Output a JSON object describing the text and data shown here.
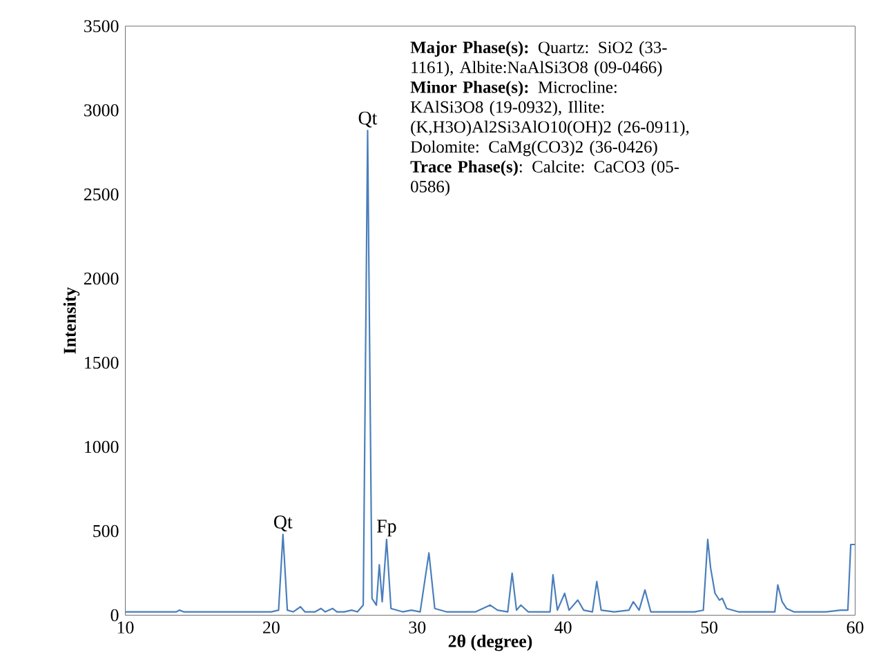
{
  "chart_data": {
    "type": "line",
    "xlabel": "2θ (degree)",
    "ylabel": "Intensity",
    "xlim": [
      10,
      60
    ],
    "xticks": [
      10,
      20,
      30,
      40,
      50,
      60
    ],
    "ylim": [
      0,
      3500
    ],
    "yticks": [
      0,
      500,
      1000,
      1500,
      2000,
      2500,
      3000,
      3500
    ],
    "grid": false,
    "marker": "none",
    "line_style": "solid",
    "series": [
      {
        "color": "#4a7ebb",
        "x": [
          10,
          12,
          13.5,
          13.7,
          14,
          16,
          18,
          19.5,
          20,
          20.5,
          20.8,
          21.1,
          21.5,
          22.0,
          22.3,
          23,
          23.4,
          23.7,
          24.2,
          24.5,
          25.0,
          25.5,
          25.9,
          26.3,
          26.6,
          26.9,
          27.2,
          27.4,
          27.6,
          27.9,
          28.2,
          29,
          29.6,
          30.2,
          30.8,
          31.2,
          32,
          33,
          34,
          35,
          35.5,
          36.2,
          36.5,
          36.8,
          37.1,
          37.6,
          38.5,
          39.1,
          39.3,
          39.6,
          40.1,
          40.4,
          41.0,
          41.4,
          42,
          42.3,
          42.6,
          43.5,
          44.5,
          44.8,
          45.2,
          45.6,
          46,
          47,
          48,
          49,
          49.6,
          49.9,
          50.1,
          50.4,
          50.7,
          50.9,
          51.2,
          52,
          53,
          54,
          54.5,
          54.7,
          55,
          55.3,
          55.8,
          57,
          58,
          59,
          59.5,
          59.7,
          60
        ],
        "values": [
          20,
          20,
          20,
          30,
          20,
          20,
          20,
          20,
          20,
          30,
          480,
          30,
          20,
          50,
          20,
          20,
          40,
          20,
          40,
          20,
          20,
          30,
          20,
          60,
          2880,
          100,
          60,
          300,
          80,
          450,
          40,
          20,
          30,
          20,
          370,
          40,
          20,
          20,
          20,
          60,
          30,
          20,
          250,
          30,
          60,
          20,
          20,
          20,
          240,
          30,
          130,
          30,
          90,
          30,
          20,
          200,
          30,
          20,
          30,
          80,
          30,
          150,
          20,
          20,
          20,
          20,
          30,
          450,
          280,
          130,
          90,
          100,
          40,
          20,
          20,
          20,
          20,
          180,
          80,
          40,
          20,
          20,
          20,
          30,
          30,
          420,
          420
        ]
      }
    ],
    "annotations": [
      {
        "text": "Qt",
        "x": 26.6,
        "y": 2880
      },
      {
        "text": "Qt",
        "x": 20.8,
        "y": 480
      },
      {
        "text": "Fp",
        "x": 27.9,
        "y": 450
      },
      "**Major Phase(s):** Quartz: SiO2 (33-1161), Albite:NaAlSi3O8 (09-0466)",
      " **Minor Phase(s):** Microcline: KAlSi3O8 (19-0932), Illite: (K,H3O)Al2Si3AlO10(OH)2 (26-0911), Dolomite: CaMg(CO3)2 (36-0426)",
      "**Trace Phase(s)**: Calcite: CaCO3 (05-0586)"
    ]
  }
}
